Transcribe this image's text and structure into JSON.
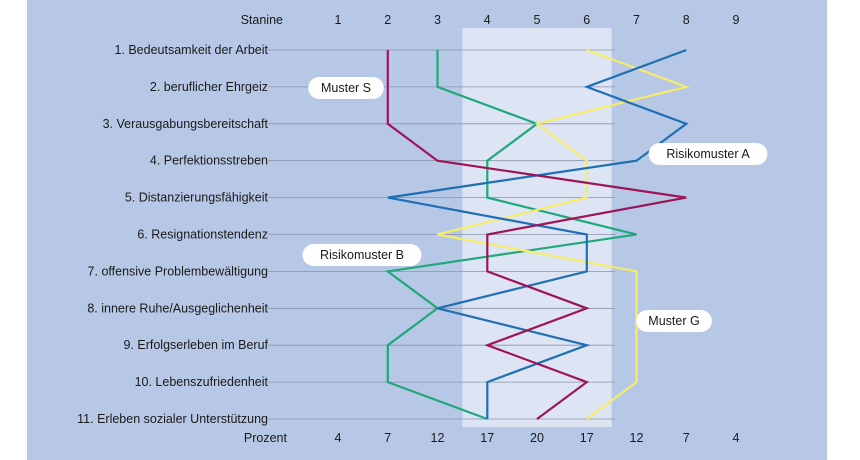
{
  "colors": {
    "background": "#b7c8e6",
    "highlight_band": "#dde5f5",
    "gridline": "#8a94a8",
    "muster_s": "#1fa87a",
    "muster_g": "#f5ec6a",
    "risikomuster_a": "#1f6fb3",
    "risikomuster_b": "#9e1457"
  },
  "chart_data": {
    "type": "line",
    "top_axis_title": "Stanine",
    "bottom_axis_title": "Prozent",
    "stanine_ticks": [
      "1",
      "2",
      "3",
      "4",
      "5",
      "6",
      "7",
      "8",
      "9"
    ],
    "prozent_ticks": [
      "4",
      "7",
      "12",
      "17",
      "20",
      "17",
      "12",
      "7",
      "4"
    ],
    "highlight_range": [
      4,
      6
    ],
    "xlim": [
      0.5,
      9.5
    ],
    "categories": [
      "1. Bedeutsamkeit der Arbeit",
      "2. beruflicher Ehrgeiz",
      "3. Verausgabungsbereitschaft",
      "4. Perfektionsstreben",
      "5. Distanzierungsfähigkeit",
      "6. Resignationstendenz",
      "7. offensive Problembewältigung",
      "8. innere Ruhe/Ausgeglichenheit",
      "9. Erfolgserleben im Beruf",
      "10. Lebenszufriedenheit",
      "11. Erleben sozialer Unterstützung"
    ],
    "series": [
      {
        "name": "Muster S",
        "color": "#1fa87a",
        "values": [
          3,
          3,
          5,
          4,
          4,
          7,
          2,
          3,
          2,
          2,
          4
        ]
      },
      {
        "name": "Muster G",
        "color": "#f5ec6a",
        "values": [
          6,
          8,
          5,
          6,
          6,
          3,
          7,
          7,
          7,
          7,
          6
        ]
      },
      {
        "name": "Risikomuster A",
        "color": "#1f6fb3",
        "values": [
          8,
          6,
          8,
          7,
          2,
          6,
          6,
          3,
          6,
          4,
          4
        ]
      },
      {
        "name": "Risikomuster B",
        "color": "#9e1457",
        "values": [
          2,
          2,
          2,
          3,
          8,
          4,
          4,
          6,
          4,
          6,
          5
        ]
      }
    ],
    "callouts": [
      {
        "text": "Muster S",
        "series": "Muster S"
      },
      {
        "text": "Muster G",
        "series": "Muster G"
      },
      {
        "text": "Risikomuster A",
        "series": "Risikomuster A"
      },
      {
        "text": "Risikomuster B",
        "series": "Risikomuster B"
      }
    ]
  }
}
